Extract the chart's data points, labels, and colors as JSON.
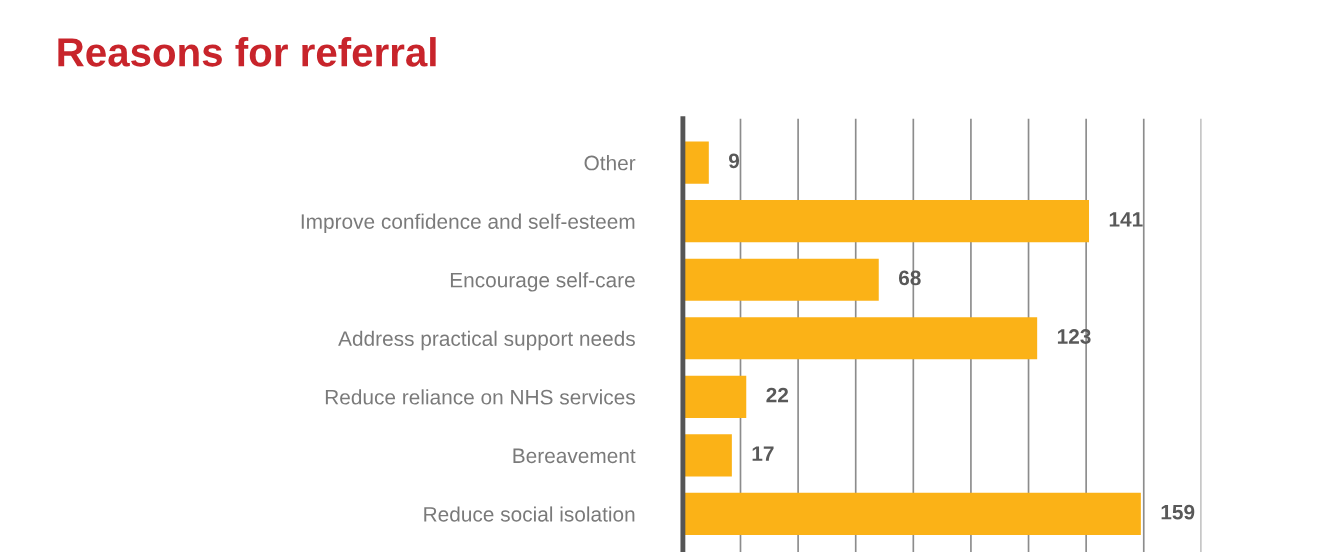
{
  "chart_data": {
    "type": "bar",
    "orientation": "horizontal",
    "title": "Reasons for referral",
    "categories": [
      "Other",
      "Improve confidence and self-esteem",
      "Encourage self-care",
      "Address practical support needs",
      "Reduce reliance on NHS services",
      "Bereavement",
      "Reduce social isolation"
    ],
    "values": [
      9,
      141,
      68,
      123,
      22,
      17,
      159
    ],
    "color": "#fbb217",
    "data_labels": true,
    "xlim": [
      0,
      180
    ],
    "xticks": [
      {
        "value": 0,
        "label": null
      },
      {
        "value": 20,
        "label": null
      },
      {
        "value": 40,
        "label": null
      },
      {
        "value": 60,
        "label": null
      },
      {
        "value": 80,
        "label": null
      },
      {
        "value": 100,
        "label": null
      },
      {
        "value": 120,
        "label": null
      },
      {
        "value": 140,
        "label": null
      },
      {
        "value": 160,
        "label": null
      },
      {
        "value": 180,
        "label": null
      }
    ],
    "grid": "x",
    "tick_labels": "y"
  }
}
